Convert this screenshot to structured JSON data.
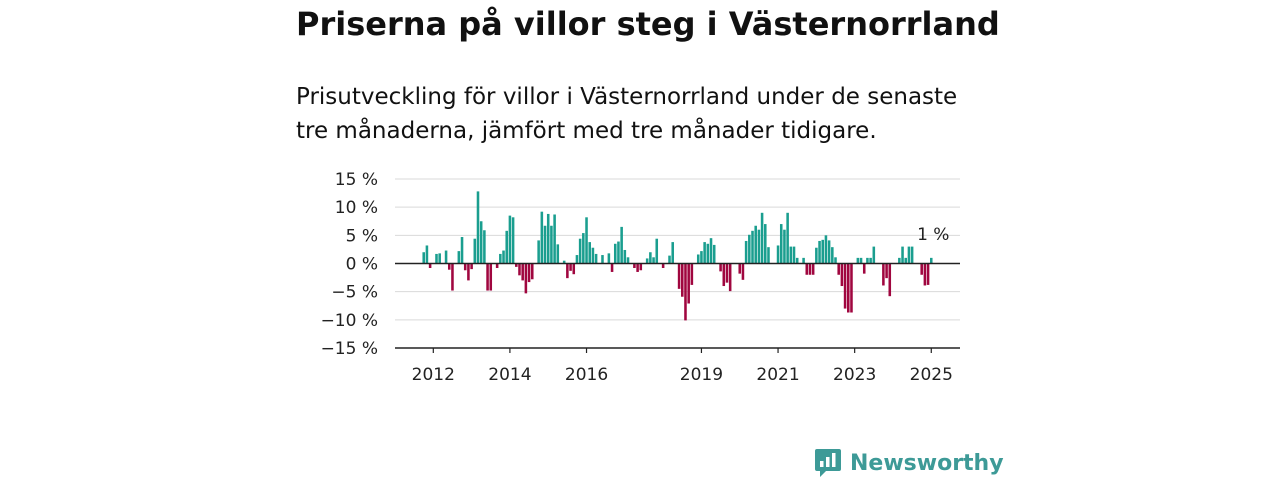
{
  "title": "Priserna på villor steg i Västernorrland",
  "subtitle": "Prisutveckling för villor i Västernorrland under de senaste tre månaderna, jämfört med tre månader tidigare.",
  "brand": "Newsworthy",
  "colors": {
    "positive": "#1a9e8f",
    "negative": "#a0063f",
    "grid": "#d9d9d9",
    "axis": "#222222",
    "brand": "#3d9a97"
  },
  "chart_data": {
    "type": "bar",
    "ylim": [
      -15,
      15
    ],
    "y_ticks": [
      15,
      10,
      5,
      0,
      -5,
      -10,
      -15
    ],
    "y_tick_labels": [
      "15 %",
      "10 %",
      "5 %",
      "0 %",
      "−5 %",
      "−10 %",
      "−15 %"
    ],
    "x_range": [
      2011.0,
      2025.75
    ],
    "x_ticks": [
      2012,
      2014,
      2016,
      2019,
      2021,
      2023,
      2025
    ],
    "x_tick_labels": [
      "2012",
      "2014",
      "2016",
      "2019",
      "2021",
      "2023",
      "2025"
    ],
    "grid": true,
    "last_value_label": "1 %",
    "x_start": 2011.75,
    "x_step": 0.0833333,
    "values": [
      2,
      3.2,
      -0.8,
      0,
      1.7,
      1.8,
      0,
      2.3,
      -1.1,
      -4.8,
      0,
      2.2,
      4.7,
      -1.2,
      -3,
      -1,
      4.4,
      12.8,
      7.5,
      5.9,
      -4.8,
      -4.8,
      0,
      -0.8,
      1.7,
      2.3,
      5.8,
      8.5,
      8.2,
      -0.6,
      -2.1,
      -3,
      -5.3,
      -3.3,
      -2.8,
      0,
      4.1,
      9.2,
      6.7,
      8.8,
      6.7,
      8.7,
      3.4,
      0,
      0.5,
      -2.6,
      -1.3,
      -1.9,
      1.5,
      4.4,
      5.4,
      8.2,
      3.8,
      2.8,
      1.7,
      0,
      1.5,
      0,
      1.8,
      -1.5,
      3.5,
      3.9,
      6.5,
      2.4,
      1.1,
      0,
      -0.8,
      -1.5,
      -1.2,
      0,
      0.9,
      2,
      1.1,
      4.4,
      0,
      -0.8,
      0,
      1.4,
      3.8,
      0,
      -4.5,
      -5.9,
      -10.1,
      -7.1,
      -3.8,
      0,
      1.6,
      2.2,
      3.8,
      3.5,
      4.5,
      3.3,
      0,
      -1.4,
      -4,
      -3.4,
      -4.9,
      0,
      0,
      -1.8,
      -2.9,
      4,
      5.1,
      5.8,
      6.7,
      6,
      9,
      7,
      2.9,
      0,
      0,
      3.2,
      7,
      6,
      9,
      3,
      3,
      1,
      0,
      1,
      -2,
      -2,
      -2,
      2.8,
      4,
      4.2,
      5,
      4.1,
      2.9,
      1.1,
      -2,
      -4,
      -8,
      -8.7,
      -8.7,
      0,
      1,
      1,
      -1.8,
      1,
      1,
      3,
      0,
      0,
      -3.9,
      -2.6,
      -5.8,
      0,
      0,
      1,
      3,
      1,
      3,
      3,
      0,
      0,
      -2,
      -3.9,
      -3.8,
      1
    ]
  }
}
